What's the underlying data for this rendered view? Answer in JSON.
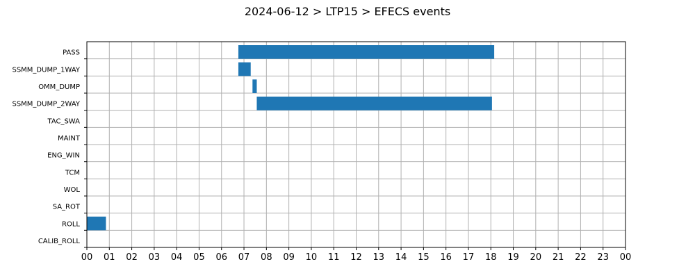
{
  "chart_data": {
    "type": "bar",
    "orientation": "horizontal-timeline",
    "title": "2024-06-12 > LTP15 > EFECS events",
    "xlabel": "",
    "ylabel": "",
    "xlim": [
      0,
      24
    ],
    "x_unit": "hour",
    "x_tick_labels": [
      "00",
      "01",
      "02",
      "03",
      "04",
      "05",
      "06",
      "07",
      "08",
      "09",
      "10",
      "11",
      "12",
      "13",
      "14",
      "15",
      "16",
      "17",
      "18",
      "19",
      "20",
      "21",
      "22",
      "23",
      "00"
    ],
    "categories": [
      "PASS",
      "SSMM_DUMP_1WAY",
      "OMM_DUMP",
      "SSMM_DUMP_2WAY",
      "TAC_SWA",
      "MAINT",
      "ENG_WIN",
      "TCM",
      "WOL",
      "SA_ROT",
      "ROLL",
      "CALIB_ROLL"
    ],
    "events": [
      {
        "category": "PASS",
        "start": 6.75,
        "end": 18.15
      },
      {
        "category": "SSMM_DUMP_1WAY",
        "start": 6.75,
        "end": 7.3
      },
      {
        "category": "OMM_DUMP",
        "start": 7.38,
        "end": 7.57
      },
      {
        "category": "SSMM_DUMP_2WAY",
        "start": 7.57,
        "end": 18.05
      },
      {
        "category": "ROLL",
        "start": 0.0,
        "end": 0.85
      }
    ],
    "grid": true,
    "legend": "none",
    "colors": {
      "bar": "#1f77b4",
      "grid": "#b0b0b0"
    }
  }
}
